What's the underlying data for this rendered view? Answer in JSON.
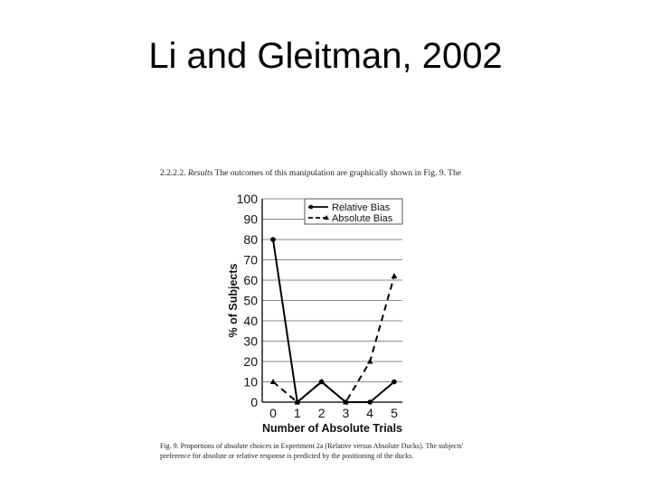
{
  "slide": {
    "title": "Li and Gleitman, 2002"
  },
  "paper": {
    "section_number": "2.2.2.2.",
    "section_label": "Results",
    "section_text": "The outcomes of this manipulation are graphically shown in Fig. 9. The",
    "caption_label": "Fig. 9.",
    "caption_text": "Proportions of absolute choices in Experiment 2a (Relative versus Absolute Ducks). The subjects' preference for absolute or relative response is predicted by the positioning of the ducks."
  },
  "chart_data": {
    "type": "line",
    "title": "",
    "xlabel": "Number of Absolute Trials",
    "ylabel": "% of Subjects",
    "x": [
      0,
      1,
      2,
      3,
      4,
      5
    ],
    "ylim": [
      0,
      100
    ],
    "yticks": [
      0,
      10,
      20,
      30,
      40,
      50,
      60,
      70,
      80,
      90,
      100
    ],
    "grid": "horizontal",
    "legend_position": "top-right",
    "series": [
      {
        "name": "Relative Bias",
        "values": [
          80,
          0,
          10,
          0,
          0,
          10
        ],
        "marker": "circle",
        "style": "solid",
        "color": "#000000"
      },
      {
        "name": "Absolute Bias",
        "values": [
          10,
          0,
          10,
          0,
          20,
          62
        ],
        "marker": "triangle",
        "style": "dashed",
        "color": "#000000"
      }
    ]
  }
}
